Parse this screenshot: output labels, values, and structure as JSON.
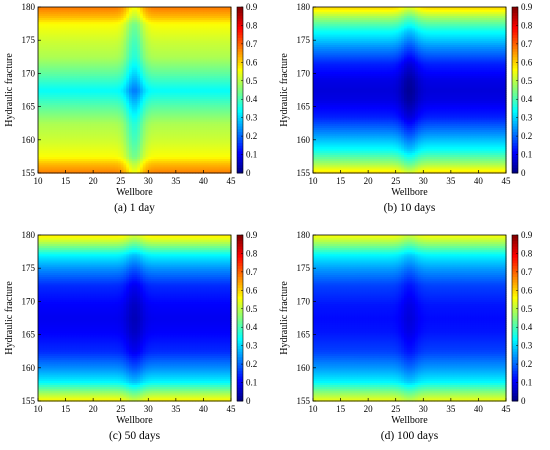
{
  "chart_data": [
    {
      "type": "heatmap",
      "caption": "(a)  1 day",
      "xlabel": "Wellbore",
      "ylabel": "Hydraulic fracture",
      "xlim": [
        10,
        45
      ],
      "ylim": [
        155,
        180
      ],
      "x_ticks": [
        "10",
        "15",
        "20",
        "25",
        "30",
        "35",
        "40",
        "45"
      ],
      "y_ticks": [
        "155",
        "160",
        "165",
        "170",
        "175",
        "180"
      ],
      "colorbar": {
        "min": 0,
        "max": 0.9,
        "ticks": [
          "0",
          "0.1",
          "0.2",
          "0.3",
          "0.4",
          "0.5",
          "0.6",
          "0.7",
          "0.8",
          "0.9"
        ],
        "colormap": "jet"
      },
      "wellbore_x": 27.5,
      "center_y": 167.5,
      "profile_dist": [
        0,
        2.5,
        5,
        7.5,
        10,
        11,
        12.5
      ],
      "profile_value": [
        0.34,
        0.42,
        0.49,
        0.52,
        0.56,
        0.62,
        0.68
      ],
      "wellbore_dip": 0.12
    },
    {
      "type": "heatmap",
      "caption": "(b)  10 days",
      "xlabel": "Wellbore",
      "ylabel": "Hydraulic fracture",
      "xlim": [
        10,
        45
      ],
      "ylim": [
        155,
        180
      ],
      "x_ticks": [
        "10",
        "15",
        "20",
        "25",
        "30",
        "35",
        "40",
        "45"
      ],
      "y_ticks": [
        "155",
        "160",
        "165",
        "170",
        "175",
        "180"
      ],
      "colorbar": {
        "min": 0,
        "max": 0.9,
        "ticks": [
          "0",
          "0.1",
          "0.2",
          "0.3",
          "0.4",
          "0.5",
          "0.6",
          "0.7",
          "0.8",
          "0.9"
        ],
        "colormap": "jet"
      },
      "wellbore_x": 27.5,
      "center_y": 167.5,
      "profile_dist": [
        0,
        1.5,
        4,
        6.5,
        9,
        11,
        12.5
      ],
      "profile_value": [
        0.08,
        0.09,
        0.14,
        0.24,
        0.35,
        0.48,
        0.6
      ],
      "wellbore_dip": 0.06
    },
    {
      "type": "heatmap",
      "caption": "(c)  50 days",
      "xlabel": "Wellbore",
      "ylabel": "Hydraulic fracture",
      "xlim": [
        10,
        45
      ],
      "ylim": [
        155,
        180
      ],
      "x_ticks": [
        "10",
        "15",
        "20",
        "25",
        "30",
        "35",
        "40",
        "45"
      ],
      "y_ticks": [
        "155",
        "160",
        "165",
        "170",
        "175",
        "180"
      ],
      "colorbar": {
        "min": 0,
        "max": 0.9,
        "ticks": [
          "0",
          "0.1",
          "0.2",
          "0.3",
          "0.4",
          "0.5",
          "0.6",
          "0.7",
          "0.8",
          "0.9"
        ],
        "colormap": "jet"
      },
      "wellbore_x": 27.5,
      "center_y": 167.5,
      "profile_dist": [
        0,
        2,
        5,
        7.5,
        9.5,
        11,
        12.5
      ],
      "profile_value": [
        0.1,
        0.11,
        0.15,
        0.24,
        0.33,
        0.46,
        0.58
      ],
      "wellbore_dip": 0.05
    },
    {
      "type": "heatmap",
      "caption": "(d)  100 days",
      "xlabel": "Wellbore",
      "ylabel": "Hydraulic fracture",
      "xlim": [
        10,
        45
      ],
      "ylim": [
        155,
        180
      ],
      "x_ticks": [
        "10",
        "15",
        "20",
        "25",
        "30",
        "35",
        "40",
        "45"
      ],
      "y_ticks": [
        "155",
        "160",
        "165",
        "170",
        "175",
        "180"
      ],
      "colorbar": {
        "min": 0,
        "max": 0.9,
        "ticks": [
          "0",
          "0.1",
          "0.2",
          "0.3",
          "0.4",
          "0.5",
          "0.6",
          "0.7",
          "0.8",
          "0.9"
        ],
        "colormap": "jet"
      },
      "wellbore_x": 27.5,
      "center_y": 167.5,
      "profile_dist": [
        0,
        2,
        5,
        7.5,
        9.5,
        11,
        12.5
      ],
      "profile_value": [
        0.12,
        0.13,
        0.17,
        0.25,
        0.33,
        0.45,
        0.56
      ],
      "wellbore_dip": 0.04
    }
  ]
}
